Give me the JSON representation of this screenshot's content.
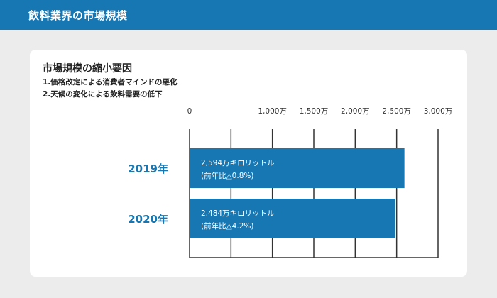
{
  "header": {
    "title": "飲料業界の市場規模"
  },
  "card": {
    "title": "市場規模の縮小要因",
    "reasons": [
      "1.価格改定による消費者マインドの悪化",
      "2.天候の変化による飲料需要の低下"
    ]
  },
  "colors": {
    "header": "#1777b3",
    "bar": "#1777b3",
    "category_label": "#1777b3"
  },
  "chart_data": {
    "type": "bar",
    "orientation": "horizontal",
    "categories": [
      "2019年",
      "2020年"
    ],
    "values": [
      2594,
      2484
    ],
    "unit": "万キロリットル",
    "xlim": [
      0,
      3000
    ],
    "ticks": [
      0,
      500,
      1000,
      1500,
      2000,
      2500,
      3000
    ],
    "tick_labels": [
      "0",
      "",
      "1,000万",
      "1,500万",
      "2,000万",
      "2,500万",
      "3,000万"
    ],
    "bar_labels": [
      [
        "2,594万キロリットル",
        "(前年比△0.8%)"
      ],
      [
        "2,484万キロリットル",
        "(前年比△4.2%)"
      ]
    ],
    "grid": true
  }
}
